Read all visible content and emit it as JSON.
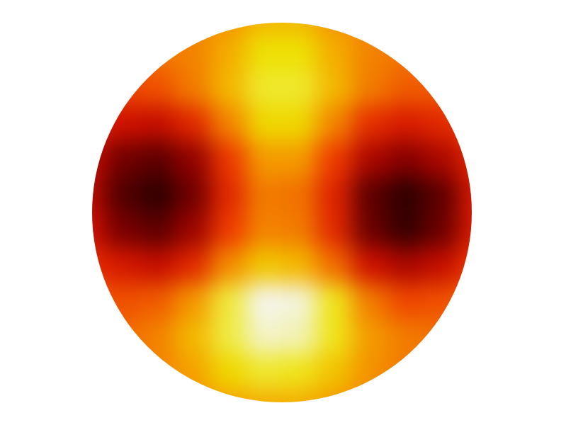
{
  "chart_data": {
    "type": "heatmap",
    "tick_labels": false,
    "cells": [
      [
        0.57,
        0.57,
        0.58,
        0.6,
        0.65,
        0.72,
        0.72,
        0.65,
        0.6,
        0.58,
        0.57,
        0.57
      ],
      [
        0.56,
        0.55,
        0.57,
        0.6,
        0.7,
        0.8,
        0.8,
        0.7,
        0.6,
        0.57,
        0.56,
        0.56
      ],
      [
        0.5,
        0.48,
        0.5,
        0.58,
        0.72,
        0.84,
        0.84,
        0.72,
        0.58,
        0.52,
        0.52,
        0.54
      ],
      [
        0.4,
        0.32,
        0.3,
        0.4,
        0.6,
        0.78,
        0.78,
        0.6,
        0.42,
        0.36,
        0.4,
        0.48
      ],
      [
        0.3,
        0.15,
        0.12,
        0.2,
        0.45,
        0.66,
        0.66,
        0.46,
        0.25,
        0.18,
        0.25,
        0.4
      ],
      [
        0.28,
        0.1,
        0.05,
        0.15,
        0.4,
        0.58,
        0.56,
        0.38,
        0.12,
        0.05,
        0.12,
        0.35
      ],
      [
        0.32,
        0.16,
        0.12,
        0.22,
        0.46,
        0.6,
        0.58,
        0.4,
        0.14,
        0.06,
        0.14,
        0.36
      ],
      [
        0.42,
        0.35,
        0.3,
        0.4,
        0.62,
        0.75,
        0.72,
        0.55,
        0.32,
        0.25,
        0.3,
        0.45
      ],
      [
        0.52,
        0.5,
        0.52,
        0.65,
        0.85,
        0.96,
        0.95,
        0.82,
        0.58,
        0.48,
        0.5,
        0.54
      ],
      [
        0.55,
        0.55,
        0.6,
        0.72,
        0.86,
        0.94,
        0.93,
        0.82,
        0.66,
        0.58,
        0.56,
        0.56
      ],
      [
        0.56,
        0.56,
        0.6,
        0.68,
        0.78,
        0.84,
        0.82,
        0.74,
        0.64,
        0.58,
        0.56,
        0.56
      ],
      [
        0.56,
        0.56,
        0.58,
        0.62,
        0.68,
        0.7,
        0.7,
        0.66,
        0.6,
        0.57,
        0.56,
        0.56
      ]
    ]
  }
}
